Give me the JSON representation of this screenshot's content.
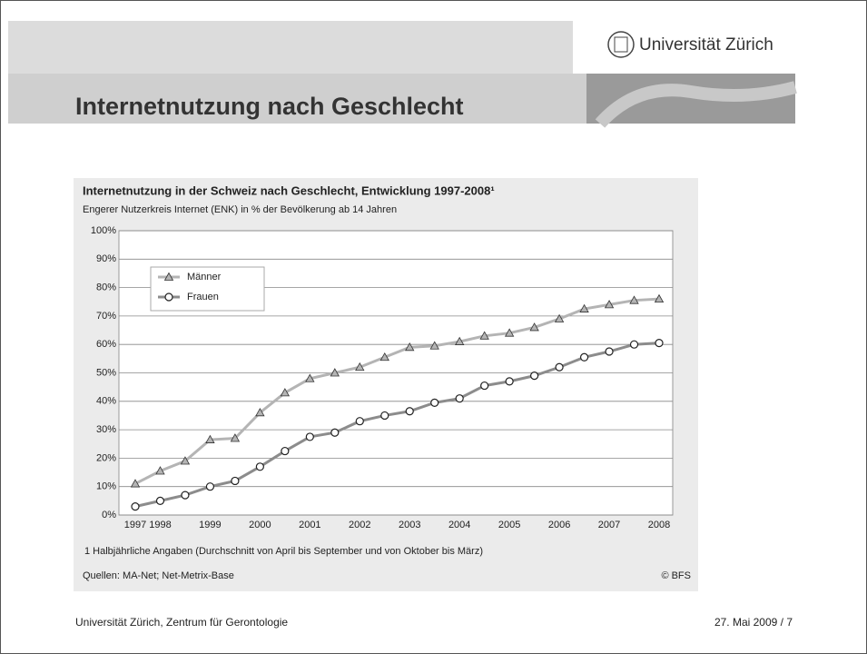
{
  "slide": {
    "logo_text": "Universität Zürich",
    "title": "Internetnutzung nach Geschlecht",
    "footer_left": "Universität Zürich, Zentrum für Gerontologie",
    "footer_right": "27. Mai 2009  /  7"
  },
  "chart_data": {
    "type": "line",
    "title": "Internetnutzung in der Schweiz nach Geschlecht, Entwicklung 1997-2008¹",
    "subtitle": "Engerer Nutzerkreis Internet (ENK) in % der Bevölkerung ab 14 Jahren",
    "footnote": "1  Halbjährliche Angaben (Durchschnitt von April bis September und von Oktober bis März)",
    "source": "Quellen: MA-Net; Net-Metrix-Base",
    "credit": "© BFS",
    "categories": [
      "1997",
      "1998",
      null,
      "1999",
      null,
      "2000",
      null,
      "2001",
      null,
      "2002",
      null,
      "2003",
      null,
      "2004",
      null,
      "2005",
      null,
      "2006",
      null,
      "2007",
      null,
      "2008"
    ],
    "series": [
      {
        "name": "Männer",
        "color": "#b4b4b4",
        "marker": "triangle",
        "values": [
          11,
          15.5,
          19,
          26.5,
          27,
          36,
          43,
          48,
          50,
          52,
          55.5,
          59,
          59.5,
          61,
          63,
          64,
          66,
          69,
          72.5,
          74,
          75.5,
          76
        ]
      },
      {
        "name": "Frauen",
        "color": "#8c8c8c",
        "marker": "circle",
        "values": [
          3,
          5,
          7,
          10,
          12,
          17,
          22.5,
          27.5,
          29,
          33,
          35,
          36.5,
          39.5,
          41,
          45.5,
          47,
          49,
          52,
          55.5,
          57.5,
          60,
          60.5
        ]
      }
    ],
    "ylim": [
      0,
      100
    ],
    "yticks": [
      {
        "value": 0,
        "label": "0%"
      },
      {
        "value": 10,
        "label": "10%"
      },
      {
        "value": 20,
        "label": "20%"
      },
      {
        "value": 30,
        "label": "30%"
      },
      {
        "value": 40,
        "label": "40%"
      },
      {
        "value": 50,
        "label": "50%"
      },
      {
        "value": 60,
        "label": "60%"
      },
      {
        "value": 70,
        "label": "70%"
      },
      {
        "value": 80,
        "label": "80%"
      },
      {
        "value": 90,
        "label": "90%"
      },
      {
        "value": 100,
        "label": "100%"
      }
    ],
    "grid": true,
    "legend": "upper left"
  }
}
